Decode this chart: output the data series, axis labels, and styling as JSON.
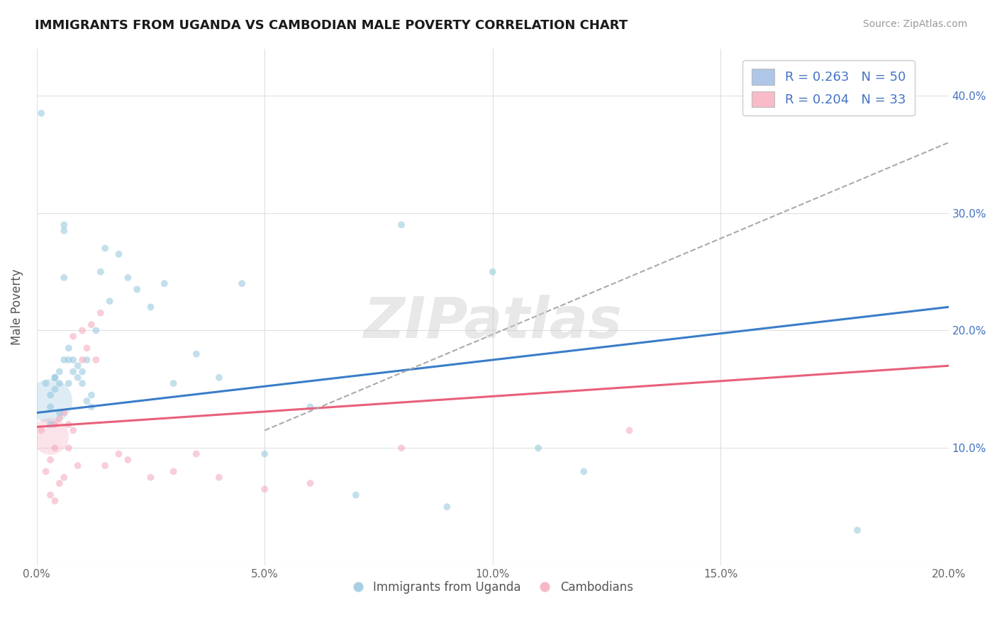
{
  "title": "IMMIGRANTS FROM UGANDA VS CAMBODIAN MALE POVERTY CORRELATION CHART",
  "source": "Source: ZipAtlas.com",
  "ylabel": "Male Poverty",
  "xlim": [
    0.0,
    0.2
  ],
  "ylim": [
    0.0,
    0.44
  ],
  "xticks": [
    0.0,
    0.05,
    0.1,
    0.15,
    0.2
  ],
  "xtick_labels": [
    "0.0%",
    "5.0%",
    "10.0%",
    "15.0%",
    "20.0%"
  ],
  "yticks": [
    0.0,
    0.1,
    0.2,
    0.3,
    0.4
  ],
  "ytick_labels_left": [
    "",
    "",
    "",
    "",
    ""
  ],
  "ytick_labels_right": [
    "",
    "10.0%",
    "20.0%",
    "30.0%",
    "40.0%"
  ],
  "legend1_R": "0.263",
  "legend1_N": "50",
  "legend2_R": "0.204",
  "legend2_N": "33",
  "blue_color": "#92c5de",
  "pink_color": "#f4a6b8",
  "blue_line_color": "#3a7dc9",
  "pink_line_color": "#e8607a",
  "dashed_line_color": "#aaaaaa",
  "watermark": "ZIPatlas",
  "blue_trend_x0": 0.0,
  "blue_trend_y0": 0.13,
  "blue_trend_x1": 0.2,
  "blue_trend_y1": 0.22,
  "pink_trend_x0": 0.0,
  "pink_trend_y0": 0.118,
  "pink_trend_x1": 0.2,
  "pink_trend_y1": 0.17,
  "dashed_trend_x0": 0.05,
  "dashed_trend_y0": 0.115,
  "dashed_trend_x1": 0.2,
  "dashed_trend_y1": 0.36,
  "uganda_x": [
    0.001,
    0.002,
    0.003,
    0.003,
    0.004,
    0.004,
    0.005,
    0.005,
    0.006,
    0.006,
    0.006,
    0.007,
    0.007,
    0.008,
    0.008,
    0.009,
    0.009,
    0.01,
    0.01,
    0.011,
    0.011,
    0.012,
    0.012,
    0.013,
    0.014,
    0.015,
    0.016,
    0.018,
    0.02,
    0.022,
    0.025,
    0.028,
    0.03,
    0.035,
    0.04,
    0.045,
    0.05,
    0.06,
    0.07,
    0.08,
    0.09,
    0.1,
    0.11,
    0.12,
    0.18,
    0.003,
    0.004,
    0.005,
    0.006,
    0.007
  ],
  "uganda_y": [
    0.385,
    0.155,
    0.135,
    0.145,
    0.15,
    0.16,
    0.155,
    0.165,
    0.29,
    0.285,
    0.175,
    0.185,
    0.175,
    0.165,
    0.175,
    0.16,
    0.17,
    0.155,
    0.165,
    0.175,
    0.14,
    0.135,
    0.145,
    0.2,
    0.25,
    0.27,
    0.225,
    0.265,
    0.245,
    0.235,
    0.22,
    0.24,
    0.155,
    0.18,
    0.16,
    0.24,
    0.095,
    0.135,
    0.06,
    0.29,
    0.05,
    0.25,
    0.1,
    0.08,
    0.03,
    0.12,
    0.16,
    0.13,
    0.245,
    0.155
  ],
  "uganda_sizes": [
    50,
    50,
    50,
    50,
    50,
    50,
    50,
    50,
    50,
    50,
    50,
    50,
    50,
    50,
    50,
    50,
    50,
    50,
    50,
    50,
    50,
    50,
    50,
    50,
    50,
    50,
    50,
    50,
    50,
    50,
    50,
    50,
    50,
    50,
    50,
    50,
    50,
    50,
    50,
    50,
    50,
    50,
    50,
    50,
    50,
    50,
    50,
    50,
    50,
    50
  ],
  "uganda_large_x": [
    0.003
  ],
  "uganda_large_y": [
    0.14
  ],
  "uganda_large_s": [
    2000
  ],
  "cambodian_x": [
    0.001,
    0.002,
    0.003,
    0.004,
    0.004,
    0.005,
    0.005,
    0.006,
    0.006,
    0.007,
    0.007,
    0.008,
    0.008,
    0.009,
    0.01,
    0.01,
    0.011,
    0.012,
    0.013,
    0.014,
    0.015,
    0.018,
    0.02,
    0.025,
    0.03,
    0.035,
    0.04,
    0.05,
    0.06,
    0.08,
    0.13,
    0.003,
    0.004
  ],
  "cambodian_y": [
    0.115,
    0.08,
    0.09,
    0.1,
    0.12,
    0.125,
    0.07,
    0.13,
    0.075,
    0.12,
    0.1,
    0.195,
    0.115,
    0.085,
    0.2,
    0.175,
    0.185,
    0.205,
    0.175,
    0.215,
    0.085,
    0.095,
    0.09,
    0.075,
    0.08,
    0.095,
    0.075,
    0.065,
    0.07,
    0.1,
    0.115,
    0.06,
    0.055
  ],
  "cambodian_sizes": [
    50,
    50,
    50,
    50,
    50,
    50,
    50,
    50,
    50,
    50,
    50,
    50,
    50,
    50,
    50,
    50,
    50,
    50,
    50,
    50,
    50,
    50,
    50,
    50,
    50,
    50,
    50,
    50,
    50,
    50,
    50,
    50,
    50
  ],
  "cambodian_large_x": [
    0.003
  ],
  "cambodian_large_y": [
    0.11
  ],
  "cambodian_large_s": [
    1400
  ]
}
